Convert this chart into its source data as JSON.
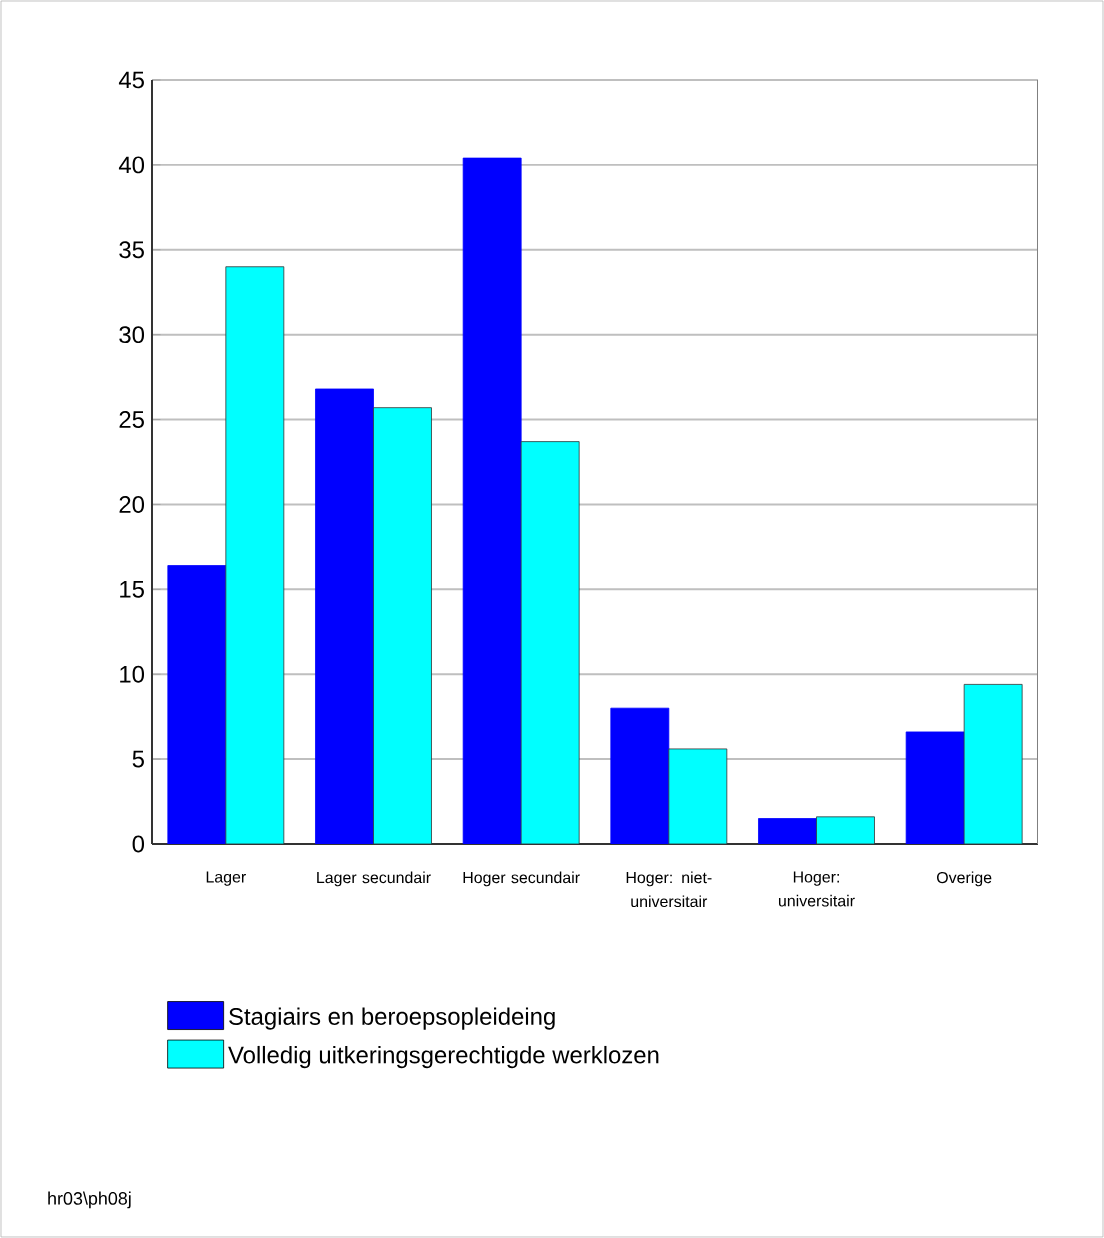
{
  "chart_data": {
    "type": "bar",
    "categories": [
      "Lager",
      "Lager secundair",
      "Hoger secundair",
      "Hoger: niet-universitair",
      "Hoger: universitair",
      "Overige"
    ],
    "series": [
      {
        "name": "Stagiairs en beroepsopleideing",
        "color": "#0000ff",
        "values": [
          16.4,
          26.8,
          40.4,
          8.0,
          1.5,
          6.6
        ]
      },
      {
        "name": "Volledig uitkeringsgerechtigde werklozen",
        "color": "#00ffff",
        "values": [
          34.0,
          25.7,
          23.7,
          5.6,
          1.6,
          9.4
        ]
      }
    ],
    "ylim": [
      0,
      45
    ],
    "yticks": [
      0,
      5,
      10,
      15,
      20,
      25,
      30,
      35,
      40,
      45
    ],
    "grid": "y",
    "legend": "bottom",
    "annotations": [
      "hr03\\ph08j"
    ]
  }
}
